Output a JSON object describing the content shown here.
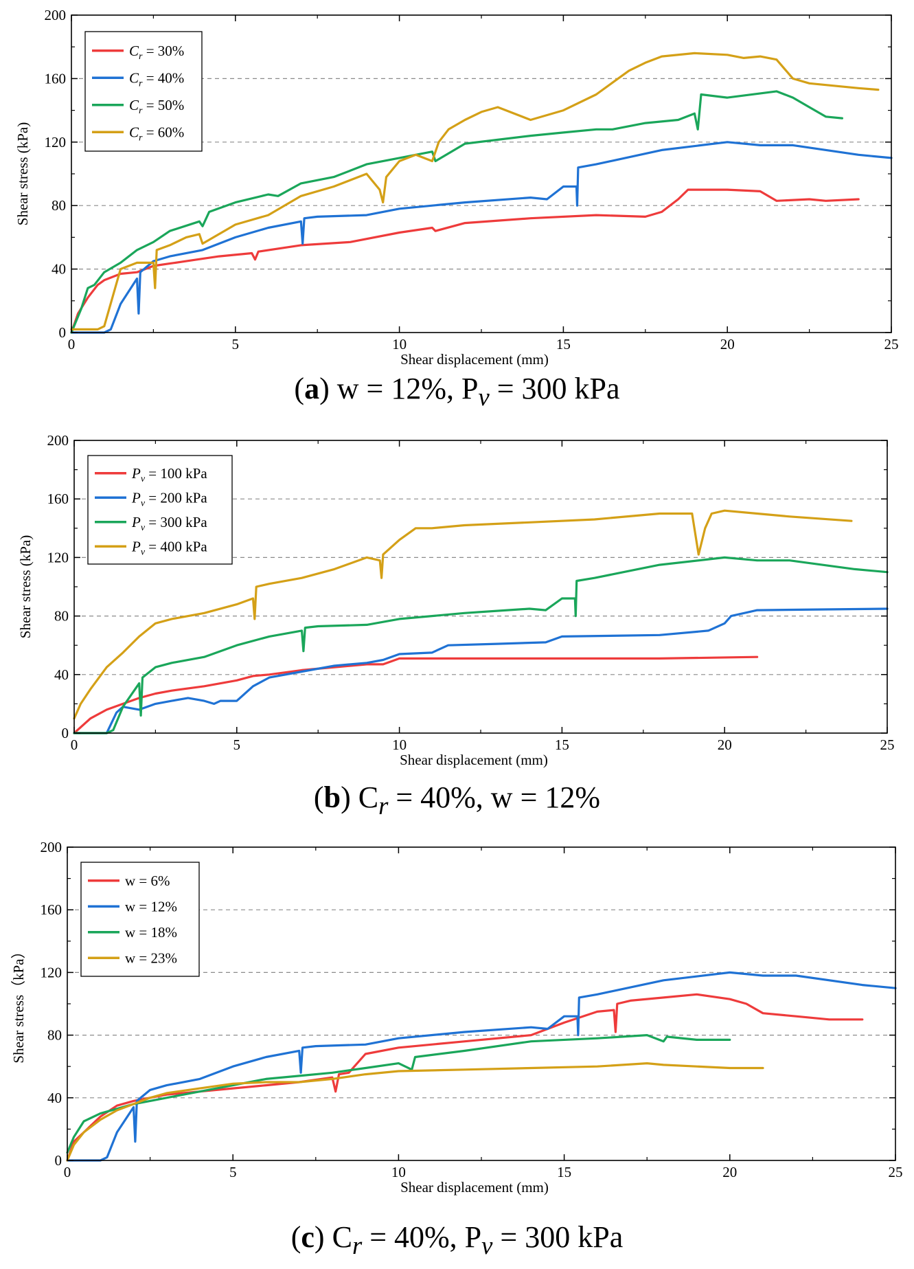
{
  "chart_data": [
    {
      "type": "line",
      "panel": "a",
      "xlabel": "Shear displacement (mm)",
      "ylabel": "Shear stress (kPa)",
      "xlim": [
        0,
        25
      ],
      "ylim": [
        0,
        200
      ],
      "xticks": [
        "0",
        "5",
        "10",
        "15",
        "20",
        "25"
      ],
      "yticks": [
        "0",
        "40",
        "80",
        "120",
        "160",
        "200"
      ],
      "grid": "horizontal dashed",
      "legend_position": "top-left",
      "caption": {
        "label": "a",
        "text": "w = 12%,  P",
        "sub": "v",
        "tail": " = 300 kPa"
      },
      "series": [
        {
          "name": "30%",
          "var": "C",
          "sub": "r",
          "color": "#ee3b3b",
          "x": [
            0,
            0.2,
            0.5,
            0.8,
            1.0,
            1.5,
            2.0,
            2.5,
            3.5,
            4.5,
            5.5,
            5.6,
            5.7,
            7.0,
            8.5,
            10.0,
            11.0,
            11.1,
            12.0,
            14.0,
            16.0,
            17.5,
            18.0,
            18.5,
            18.8,
            20.0,
            21.0,
            21.5,
            22.5,
            23.0,
            24.0
          ],
          "y": [
            0,
            12,
            22,
            30,
            33,
            37,
            38,
            42,
            45,
            48,
            50,
            46,
            51,
            55,
            57,
            63,
            66,
            64,
            69,
            72,
            74,
            73,
            76,
            84,
            90,
            90,
            89,
            83,
            84,
            83,
            84
          ]
        },
        {
          "name": "40%",
          "var": "C",
          "sub": "r",
          "color": "#1f72d4",
          "x": [
            0,
            1.0,
            1.2,
            1.5,
            2.0,
            2.05,
            2.1,
            2.5,
            3.0,
            4.0,
            5.0,
            6.0,
            7.0,
            7.05,
            7.1,
            7.5,
            9.0,
            10.0,
            12.0,
            14.0,
            14.5,
            15.0,
            15.4,
            15.42,
            15.45,
            16.0,
            18.0,
            20.0,
            21.0,
            22.0,
            24.0,
            25.0
          ],
          "y": [
            0,
            0,
            2,
            18,
            34,
            12,
            38,
            45,
            48,
            52,
            60,
            66,
            70,
            56,
            72,
            73,
            74,
            78,
            82,
            85,
            84,
            92,
            92,
            80,
            104,
            106,
            115,
            120,
            118,
            118,
            112,
            110
          ]
        },
        {
          "name": "50%",
          "var": "C",
          "sub": "r",
          "color": "#1aa65a",
          "x": [
            0,
            0.3,
            0.5,
            0.7,
            1.0,
            1.5,
            2.0,
            2.5,
            3.0,
            3.9,
            4.0,
            4.2,
            5.0,
            6.0,
            6.3,
            7.0,
            8.0,
            8.5,
            9.0,
            10.0,
            11.0,
            11.1,
            12.0,
            14.0,
            15.0,
            16.0,
            16.5,
            17.5,
            18.5,
            19.0,
            19.1,
            19.2,
            20.0,
            21.5,
            22.0,
            22.5,
            23.0,
            23.5
          ],
          "y": [
            0,
            15,
            28,
            30,
            38,
            44,
            52,
            57,
            64,
            70,
            67,
            76,
            82,
            87,
            86,
            94,
            98,
            102,
            106,
            110,
            114,
            108,
            119,
            124,
            126,
            128,
            128,
            132,
            134,
            138,
            128,
            150,
            148,
            152,
            148,
            142,
            136,
            135
          ]
        },
        {
          "name": "60%",
          "var": "C",
          "sub": "r",
          "color": "#d4a017",
          "x": [
            0,
            0.8,
            1.0,
            1.5,
            2.0,
            2.5,
            2.55,
            2.6,
            3.0,
            3.5,
            3.9,
            4.0,
            5.0,
            6.0,
            7.0,
            8.0,
            9.0,
            9.4,
            9.5,
            9.6,
            10.0,
            10.5,
            11.0,
            11.2,
            11.5,
            12.0,
            12.5,
            13.0,
            14.0,
            15.0,
            16.0,
            17.0,
            17.5,
            18.0,
            19.0,
            20.0,
            20.5,
            21.0,
            21.5,
            22.0,
            22.5,
            24.0,
            24.6
          ],
          "y": [
            2,
            2,
            4,
            40,
            44,
            44,
            28,
            52,
            55,
            60,
            62,
            56,
            68,
            74,
            86,
            92,
            100,
            90,
            82,
            98,
            108,
            112,
            108,
            120,
            128,
            134,
            139,
            142,
            134,
            140,
            150,
            165,
            170,
            174,
            176,
            175,
            173,
            174,
            172,
            160,
            157,
            154,
            153
          ]
        }
      ]
    },
    {
      "type": "line",
      "panel": "b",
      "xlabel": "Shear displacement (mm)",
      "ylabel": "Shear stress (kPa)",
      "xlim": [
        0,
        25
      ],
      "ylim": [
        0,
        200
      ],
      "xticks": [
        "0",
        "5",
        "10",
        "15",
        "20",
        "25"
      ],
      "yticks": [
        "0",
        "40",
        "80",
        "120",
        "160",
        "200"
      ],
      "grid": "horizontal dashed",
      "legend_position": "top-left",
      "caption": {
        "label": "b",
        "text": "C",
        "sub": "r",
        "tail": " = 40%, w = 12%"
      },
      "series": [
        {
          "name": " = 100 kPa",
          "var": "P",
          "sub": "v",
          "color": "#ee3b3b",
          "x": [
            0,
            0.5,
            1.0,
            1.5,
            2.0,
            2.5,
            3.0,
            4.0,
            5.0,
            5.5,
            6.0,
            7.0,
            8.0,
            9.0,
            9.5,
            10.0,
            11.0,
            13.0,
            15.0,
            18.0,
            21.0
          ],
          "y": [
            0,
            10,
            16,
            20,
            24,
            27,
            29,
            32,
            36,
            39,
            40,
            43,
            45,
            47,
            47,
            51,
            51,
            51,
            51,
            51,
            52
          ]
        },
        {
          "name": " = 200 kPa",
          "var": "P",
          "sub": "v",
          "color": "#1f72d4",
          "x": [
            0,
            1.0,
            1.3,
            1.5,
            2.0,
            2.5,
            3.0,
            3.5,
            4.0,
            4.3,
            4.5,
            5.0,
            5.5,
            6.0,
            7.0,
            8.0,
            9.0,
            9.5,
            10.0,
            11.0,
            11.5,
            13.0,
            14.5,
            15.0,
            18.0,
            19.5,
            20.0,
            20.2,
            21.0,
            25.0
          ],
          "y": [
            0,
            0,
            14,
            18,
            16,
            20,
            22,
            24,
            22,
            20,
            22,
            22,
            32,
            38,
            42,
            46,
            48,
            50,
            54,
            55,
            60,
            61,
            62,
            66,
            67,
            70,
            75,
            80,
            84,
            85
          ]
        },
        {
          "name": " = 300 kPa",
          "var": "P",
          "sub": "v",
          "color": "#1aa65a",
          "x": [
            0,
            1.0,
            1.2,
            1.5,
            2.0,
            2.05,
            2.1,
            2.5,
            3.0,
            4.0,
            5.0,
            6.0,
            7.0,
            7.05,
            7.1,
            7.5,
            9.0,
            10.0,
            12.0,
            14.0,
            14.5,
            15.0,
            15.4,
            15.42,
            15.45,
            16.0,
            18.0,
            20.0,
            21.0,
            22.0,
            24.0,
            25.0
          ],
          "y": [
            0,
            0,
            2,
            18,
            34,
            12,
            38,
            45,
            48,
            52,
            60,
            66,
            70,
            56,
            72,
            73,
            74,
            78,
            82,
            85,
            84,
            92,
            92,
            80,
            104,
            106,
            115,
            120,
            118,
            118,
            112,
            110
          ]
        },
        {
          "name": " = 400 kPa",
          "var": "P",
          "sub": "v",
          "color": "#d4a017",
          "x": [
            0,
            0.2,
            0.5,
            1.0,
            1.5,
            2.0,
            2.5,
            3.0,
            4.0,
            5.0,
            5.5,
            5.55,
            5.6,
            6.0,
            7.0,
            8.0,
            9.0,
            9.4,
            9.45,
            9.5,
            10.0,
            10.5,
            11.0,
            12.0,
            14.0,
            16.0,
            18.0,
            19.0,
            19.2,
            19.4,
            19.6,
            20.0,
            21.0,
            22.0,
            23.9
          ],
          "y": [
            10,
            20,
            30,
            45,
            55,
            66,
            75,
            78,
            82,
            88,
            92,
            78,
            100,
            102,
            106,
            112,
            120,
            118,
            106,
            122,
            132,
            140,
            140,
            142,
            144,
            146,
            150,
            150,
            122,
            140,
            150,
            152,
            150,
            148,
            145
          ]
        }
      ]
    },
    {
      "type": "line",
      "panel": "c",
      "xlabel": "Shear displacement (mm)",
      "ylabel": "Shear stress（kPa）",
      "xlim": [
        0,
        25
      ],
      "ylim": [
        0,
        200
      ],
      "xticks": [
        "0",
        "5",
        "10",
        "15",
        "20",
        "25"
      ],
      "yticks": [
        "0",
        "40",
        "80",
        "120",
        "160",
        "200"
      ],
      "grid": "horizontal dashed",
      "legend_position": "top-left",
      "caption": {
        "label": "c",
        "text": "C",
        "sub": "r",
        "tail": " = 40%, P",
        "sub2": "v",
        "tail2": " = 300 kPa"
      },
      "series": [
        {
          "name": "w = 6%",
          "color": "#ee3b3b",
          "x": [
            0,
            0.2,
            0.5,
            1.0,
            1.5,
            2.0,
            2.5,
            3.0,
            4.0,
            5.0,
            6.0,
            7.0,
            8.0,
            8.1,
            8.2,
            8.5,
            9.0,
            10.0,
            12.0,
            14.0,
            15.0,
            16.0,
            16.5,
            16.55,
            16.6,
            17.0,
            18.0,
            19.0,
            20.0,
            20.5,
            21.0,
            22.0,
            23.0,
            24.0
          ],
          "y": [
            0,
            12,
            18,
            28,
            35,
            38,
            40,
            42,
            44,
            46,
            48,
            50,
            53,
            44,
            55,
            56,
            68,
            72,
            76,
            80,
            88,
            95,
            96,
            82,
            100,
            102,
            104,
            106,
            103,
            100,
            94,
            92,
            90,
            90
          ]
        },
        {
          "name": "w = 12%",
          "color": "#1f72d4",
          "x": [
            0,
            1.0,
            1.2,
            1.5,
            2.0,
            2.05,
            2.1,
            2.5,
            3.0,
            4.0,
            5.0,
            6.0,
            7.0,
            7.05,
            7.1,
            7.5,
            9.0,
            10.0,
            12.0,
            14.0,
            14.5,
            15.0,
            15.4,
            15.42,
            15.45,
            16.0,
            18.0,
            20.0,
            21.0,
            22.0,
            24.0,
            25.0
          ],
          "y": [
            0,
            0,
            2,
            18,
            34,
            12,
            38,
            45,
            48,
            52,
            60,
            66,
            70,
            56,
            72,
            73,
            74,
            78,
            82,
            85,
            84,
            92,
            92,
            80,
            104,
            106,
            115,
            120,
            118,
            118,
            112,
            110
          ]
        },
        {
          "name": "w = 18%",
          "color": "#1aa65a",
          "x": [
            0,
            0.2,
            0.5,
            1.0,
            1.5,
            2.0,
            2.5,
            3.0,
            4.0,
            5.0,
            6.0,
            7.0,
            8.0,
            9.0,
            10.0,
            10.4,
            10.5,
            12.0,
            14.0,
            16.0,
            17.5,
            18.0,
            18.1,
            19.0,
            20.0
          ],
          "y": [
            5,
            15,
            25,
            30,
            33,
            36,
            38,
            40,
            44,
            48,
            52,
            54,
            56,
            59,
            62,
            58,
            66,
            70,
            76,
            78,
            80,
            76,
            79,
            77,
            77
          ]
        },
        {
          "name": "w = 23%",
          "color": "#d4a017",
          "x": [
            0,
            0.2,
            0.5,
            1.0,
            1.5,
            2.0,
            2.5,
            3.0,
            4.0,
            5.0,
            6.0,
            7.0,
            8.0,
            9.0,
            10.0,
            12.0,
            14.0,
            16.0,
            17.5,
            18.0,
            19.0,
            20.0,
            21.0
          ],
          "y": [
            0,
            10,
            18,
            26,
            32,
            36,
            40,
            43,
            46,
            49,
            50,
            50,
            52,
            55,
            57,
            58,
            59,
            60,
            62,
            61,
            60,
            59,
            59
          ]
        }
      ]
    }
  ]
}
